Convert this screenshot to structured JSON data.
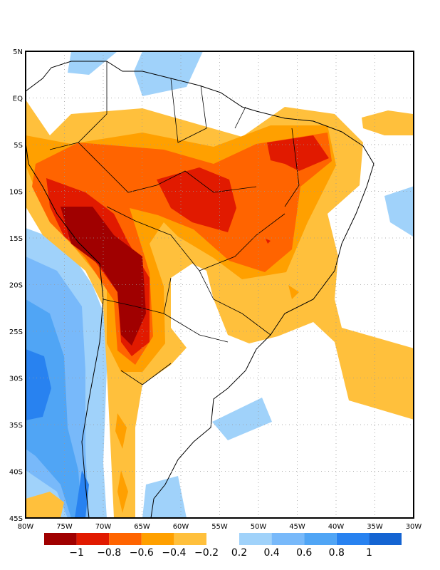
{
  "map": {
    "lat_labels": [
      "5N",
      "EQ",
      "5S",
      "10S",
      "15S",
      "20S",
      "25S",
      "30S",
      "35S",
      "40S",
      "45S"
    ],
    "lon_labels": [
      "80W",
      "75W",
      "70W",
      "65W",
      "60W",
      "55W",
      "50W",
      "45W",
      "40W",
      "35W",
      "30W"
    ],
    "extent": {
      "lon": [
        -80,
        -30
      ],
      "lat": [
        -45,
        5
      ]
    }
  },
  "colorbar": {
    "negative": [
      {
        "color": "#a00000",
        "label": "−1"
      },
      {
        "color": "#e11a00",
        "label": "−0.8"
      },
      {
        "color": "#ff6400",
        "label": "−0.6"
      },
      {
        "color": "#ffa000",
        "label": "−0.4"
      },
      {
        "color": "#ffc03c",
        "label": "−0.2"
      }
    ],
    "positive": [
      {
        "color": "#a0d2fa",
        "label": "0.2"
      },
      {
        "color": "#78b9fa",
        "label": "0.4"
      },
      {
        "color": "#50a5f5",
        "label": "0.6"
      },
      {
        "color": "#2882f0",
        "label": "0.8"
      },
      {
        "color": "#1464d2",
        "label": "1"
      }
    ]
  }
}
